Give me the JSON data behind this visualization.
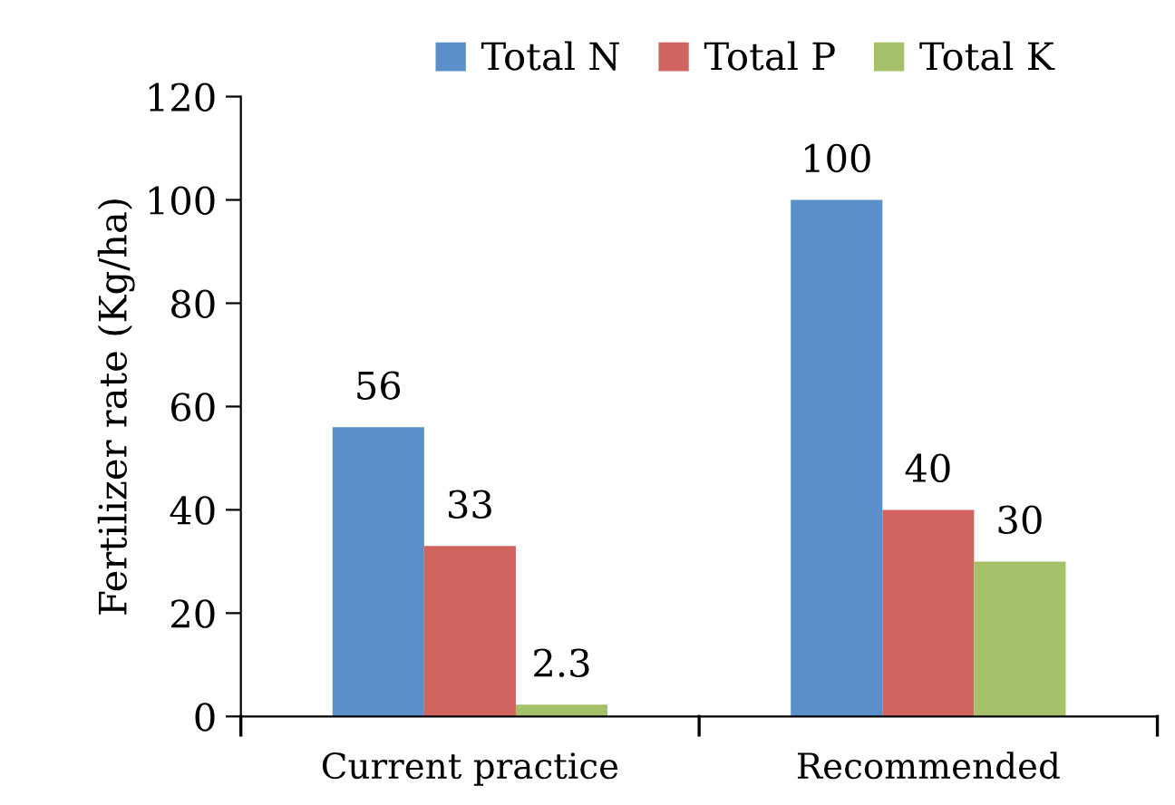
{
  "chart_data": {
    "type": "bar",
    "ylabel": "Fertilizer rate (Kg/ha)",
    "categories": [
      "Current practice",
      "Recommended"
    ],
    "series": [
      {
        "name": "Total N",
        "color": "#5b8fc9",
        "values": [
          56,
          100
        ]
      },
      {
        "name": "Total P",
        "color": "#cf6460",
        "values": [
          33,
          40
        ]
      },
      {
        "name": "Total K",
        "color": "#a5c26b",
        "values": [
          2.3,
          30
        ]
      }
    ],
    "ylim": [
      0,
      120
    ],
    "yticks": [
      0,
      20,
      40,
      60,
      80,
      100,
      120
    ],
    "data_labels": true,
    "grid": false,
    "legend": "top"
  }
}
